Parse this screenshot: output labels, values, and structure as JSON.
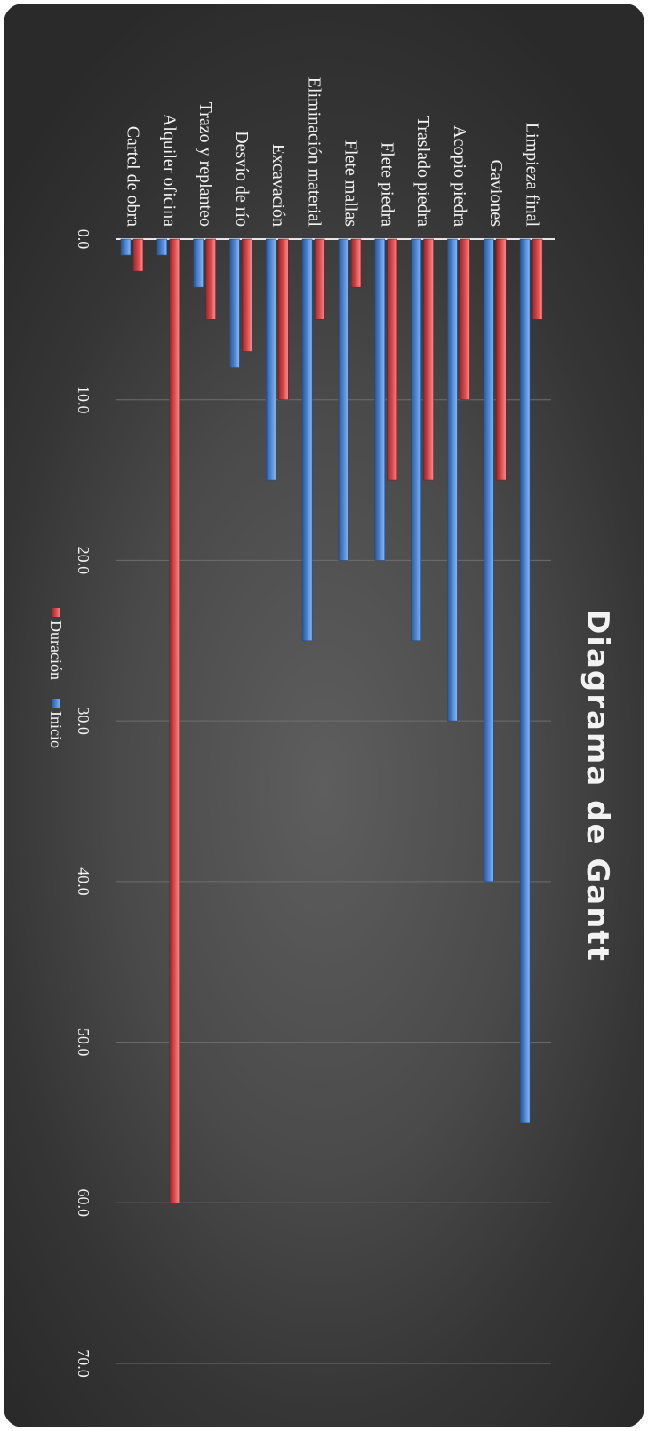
{
  "chart_data": {
    "type": "bar",
    "title": "Diagrama de Gantt",
    "xlabel": "",
    "ylabel": "",
    "categories": [
      "Limpieza final",
      "Gaviones",
      "Acopio piedra",
      "Traslado piedra",
      "Flete piedra",
      "Flete mallas",
      "Eliminación material",
      "Excavación",
      "Desvío de río",
      "Trazo y replanteo",
      "Alquiler oficina",
      "Cartel de obra"
    ],
    "series": [
      {
        "name": "Duración",
        "color": "#e0585a",
        "values": [
          5,
          15,
          10,
          15,
          15,
          3,
          5,
          10,
          7,
          5,
          60,
          2
        ]
      },
      {
        "name": "Inicio",
        "color": "#5a8fd6",
        "values": [
          55,
          40,
          30,
          25,
          20,
          20,
          25,
          15,
          8,
          3,
          1,
          1
        ]
      }
    ],
    "xlim": [
      0,
      70
    ],
    "ticks": [
      "0.0",
      "10.0",
      "20.0",
      "30.0",
      "40.0",
      "50.0",
      "60.0",
      "70.0"
    ],
    "grid": true,
    "legend_position": "bottom",
    "text_color": "#f2f2f2",
    "gridline_color": "#6e6e6e"
  }
}
